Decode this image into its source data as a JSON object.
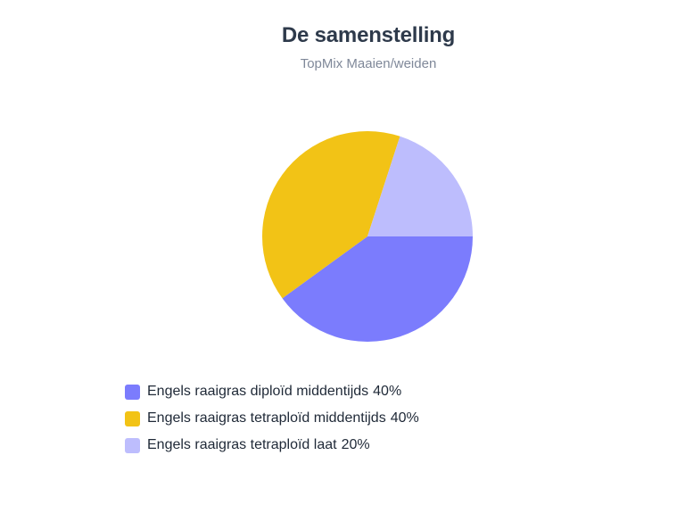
{
  "chart_data": {
    "type": "pie",
    "title": "De samenstelling",
    "subtitle": "TopMix Maaien/weiden",
    "legend_position": "bottom-left",
    "slices": [
      {
        "label": "Engels raaigras diploïd middentijds",
        "value": 40,
        "value_label": "40%",
        "color": "#7b7cfd"
      },
      {
        "label": "Engels raaigras tetraploïd middentijds",
        "value": 40,
        "value_label": "40%",
        "color": "#f2c316"
      },
      {
        "label": "Engels raaigras tetraploïd laat",
        "value": 20,
        "value_label": "20%",
        "color": "#bdbdfd"
      }
    ]
  }
}
